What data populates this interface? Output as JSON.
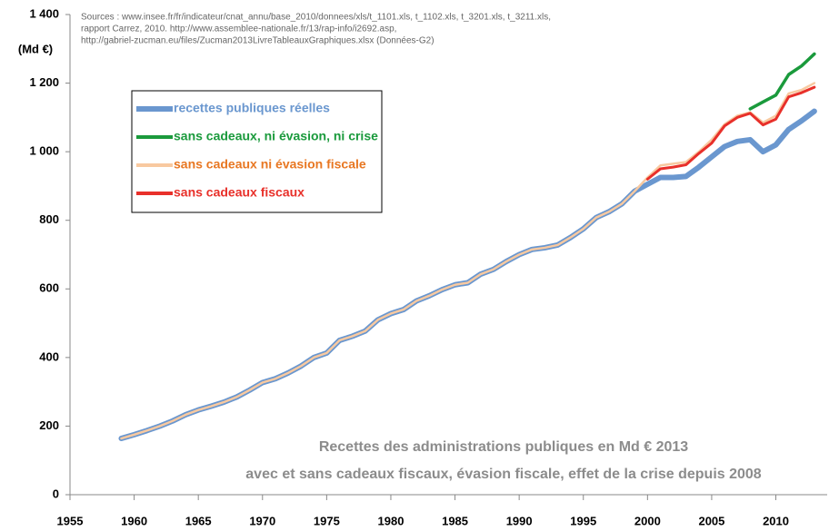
{
  "chart_data": {
    "type": "line",
    "title": [
      "Recettes des administrations publiques en Md € 2013",
      "avec et sans cadeaux fiscaux, évasion fiscale, effet de la crise depuis 2008"
    ],
    "source": [
      "Sources : www.insee.fr/fr/indicateur/cnat_annu/base_2010/donnees/xls/t_1101.xls, t_1102.xls, t_3201.xls, t_3211.xls,",
      "rapport Carrez, 2010. http://www.assemblee-nationale.fr/13/rap-info/i2692.asp,",
      "http://gabriel-zucman.eu/files/Zucman2013LivreTableauxGraphiques.xlsx (Données-G2)"
    ],
    "y_label": "(Md €)",
    "x": [
      1959,
      1960,
      1961,
      1962,
      1963,
      1964,
      1965,
      1966,
      1967,
      1968,
      1969,
      1970,
      1971,
      1972,
      1973,
      1974,
      1975,
      1976,
      1977,
      1978,
      1979,
      1980,
      1981,
      1982,
      1983,
      1984,
      1985,
      1986,
      1987,
      1988,
      1989,
      1990,
      1991,
      1992,
      1993,
      1994,
      1995,
      1996,
      1997,
      1998,
      1999,
      2000,
      2001,
      2002,
      2003,
      2004,
      2005,
      2006,
      2007,
      2008,
      2009,
      2010,
      2011,
      2012,
      2013
    ],
    "series": [
      {
        "name": "recettes publiques réelles",
        "color": "#6a97cf",
        "width": 6,
        "values": [
          164,
          175,
          187,
          200,
          215,
          233,
          247,
          258,
          270,
          285,
          305,
          327,
          338,
          355,
          375,
          400,
          413,
          450,
          462,
          477,
          510,
          528,
          540,
          565,
          580,
          598,
          612,
          618,
          643,
          657,
          680,
          700,
          715,
          720,
          728,
          750,
          775,
          808,
          825,
          848,
          885,
          905,
          925,
          925,
          928,
          955,
          985,
          1015,
          1030,
          1035,
          1000,
          1020,
          1065,
          1090,
          1118
        ]
      },
      {
        "name": "sans cadeaux ni évasion fiscale",
        "color": "#f8c9a0",
        "width": 2.5,
        "values": [
          164,
          175,
          187,
          200,
          215,
          233,
          247,
          258,
          270,
          285,
          305,
          327,
          338,
          355,
          375,
          400,
          413,
          450,
          462,
          477,
          510,
          528,
          540,
          565,
          580,
          598,
          612,
          618,
          643,
          657,
          680,
          700,
          715,
          720,
          728,
          750,
          775,
          808,
          825,
          848,
          885,
          925,
          960,
          965,
          970,
          1000,
          1035,
          1080,
          1105,
          1115,
          1085,
          1105,
          1170,
          1180,
          1200
        ]
      },
      {
        "name": "sans cadeaux fiscaux",
        "color": "#e8302a",
        "width": 3,
        "values": [
          null,
          null,
          null,
          null,
          null,
          null,
          null,
          null,
          null,
          null,
          null,
          null,
          null,
          null,
          null,
          null,
          null,
          null,
          null,
          null,
          null,
          null,
          null,
          null,
          null,
          null,
          null,
          null,
          null,
          null,
          null,
          null,
          null,
          null,
          null,
          null,
          null,
          null,
          null,
          null,
          null,
          920,
          950,
          955,
          962,
          995,
          1025,
          1075,
          1100,
          1112,
          1078,
          1095,
          1160,
          1172,
          1188
        ]
      },
      {
        "name": "sans cadeaux, ni évasion, ni crise",
        "color": "#1a9a3c",
        "width": 3.5,
        "values": [
          null,
          null,
          null,
          null,
          null,
          null,
          null,
          null,
          null,
          null,
          null,
          null,
          null,
          null,
          null,
          null,
          null,
          null,
          null,
          null,
          null,
          null,
          null,
          null,
          null,
          null,
          null,
          null,
          null,
          null,
          null,
          null,
          null,
          null,
          null,
          null,
          null,
          null,
          null,
          null,
          null,
          null,
          null,
          null,
          null,
          null,
          null,
          null,
          null,
          1125,
          1145,
          1165,
          1225,
          1250,
          1285
        ]
      }
    ],
    "legend_order": [
      0,
      3,
      1,
      2
    ],
    "xlim": [
      1955,
      2014
    ],
    "xticks": [
      1955,
      1960,
      1965,
      1970,
      1975,
      1980,
      1985,
      1990,
      1995,
      2000,
      2005,
      2010
    ],
    "ylim": [
      0,
      1400
    ],
    "yticks": [
      0,
      200,
      400,
      600,
      800,
      {
        "value": 1000,
        "label": "1 000"
      },
      {
        "value": 1200,
        "label": "1 200"
      },
      {
        "value": 1400,
        "label": "1 400"
      }
    ],
    "grid": false
  }
}
